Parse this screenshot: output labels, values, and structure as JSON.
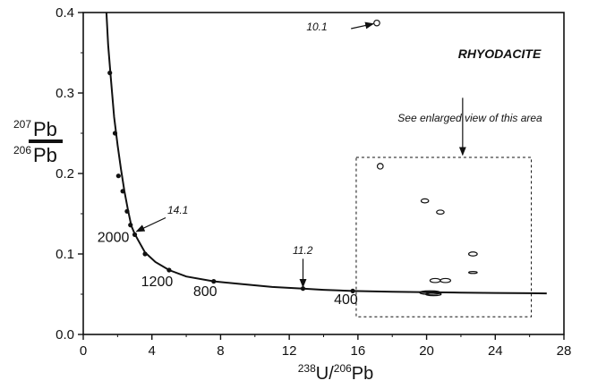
{
  "chart_data": {
    "type": "scatter",
    "title": "RHYODACITE",
    "xlabel": {
      "sup1": "238",
      "main1": "U/",
      "sup2": "206",
      "main2": "Pb"
    },
    "ylabel": {
      "num_sup": "207",
      "num": "Pb",
      "den_sup": "206",
      "den": "Pb"
    },
    "xlim": [
      0,
      28
    ],
    "ylim": [
      0.0,
      0.4
    ],
    "x_ticks": [
      0,
      4,
      8,
      12,
      16,
      20,
      24,
      28
    ],
    "x_tick_labels": [
      "0",
      "4",
      "8",
      "12",
      "16",
      "20",
      "24",
      "28"
    ],
    "y_ticks": [
      0.0,
      0.1,
      0.2,
      0.3,
      0.4
    ],
    "y_tick_labels": [
      "0.0",
      "0.1",
      "0.2",
      "0.3",
      "0.4"
    ],
    "grid": false,
    "concordia_curve": [
      [
        1.35,
        0.4
      ],
      [
        1.45,
        0.36
      ],
      [
        1.6,
        0.32
      ],
      [
        1.8,
        0.27
      ],
      [
        2.0,
        0.235
      ],
      [
        2.2,
        0.205
      ],
      [
        2.4,
        0.178
      ],
      [
        2.6,
        0.155
      ],
      [
        2.8,
        0.135
      ],
      [
        3.0,
        0.125
      ],
      [
        3.2,
        0.117
      ],
      [
        3.6,
        0.102
      ],
      [
        4.2,
        0.09
      ],
      [
        5.0,
        0.08
      ],
      [
        6.0,
        0.072
      ],
      [
        7.6,
        0.066
      ],
      [
        9.0,
        0.063
      ],
      [
        11.0,
        0.059
      ],
      [
        12.8,
        0.057
      ],
      [
        14.0,
        0.0555
      ],
      [
        15.7,
        0.054
      ],
      [
        18.0,
        0.053
      ],
      [
        20.0,
        0.0525
      ],
      [
        22.0,
        0.052
      ],
      [
        24.0,
        0.0515
      ],
      [
        26.0,
        0.0512
      ],
      [
        27.0,
        0.051
      ]
    ],
    "curve_markers": [
      [
        1.55,
        0.325
      ],
      [
        1.85,
        0.25
      ],
      [
        2.05,
        0.197
      ],
      [
        2.3,
        0.178
      ],
      [
        2.55,
        0.153
      ],
      [
        2.75,
        0.136
      ],
      [
        3.0,
        0.124
      ],
      [
        3.6,
        0.1
      ],
      [
        5.0,
        0.08
      ],
      [
        7.6,
        0.066
      ],
      [
        12.8,
        0.057
      ],
      [
        15.7,
        0.054
      ]
    ],
    "age_labels": [
      {
        "text": "2000",
        "x": 1.75,
        "y": 0.115
      },
      {
        "text": "1200",
        "x": 4.3,
        "y": 0.06
      },
      {
        "text": "800",
        "x": 7.1,
        "y": 0.048
      },
      {
        "text": "400",
        "x": 15.3,
        "y": 0.038
      }
    ],
    "ellipses": [
      {
        "x": 17.1,
        "y": 0.387,
        "rx": 0.17,
        "ry": 0.0035
      },
      {
        "x": 17.3,
        "y": 0.209,
        "rx": 0.17,
        "ry": 0.0035
      },
      {
        "x": 19.9,
        "y": 0.166,
        "rx": 0.22,
        "ry": 0.0025
      },
      {
        "x": 20.8,
        "y": 0.152,
        "rx": 0.22,
        "ry": 0.0025
      },
      {
        "x": 22.7,
        "y": 0.1,
        "rx": 0.25,
        "ry": 0.0025
      },
      {
        "x": 22.7,
        "y": 0.077,
        "rx": 0.25,
        "ry": 0.0012
      },
      {
        "x": 20.5,
        "y": 0.067,
        "rx": 0.3,
        "ry": 0.0025
      },
      {
        "x": 21.1,
        "y": 0.067,
        "rx": 0.3,
        "ry": 0.0025
      },
      {
        "x": 20.2,
        "y": 0.052,
        "rx": 0.6,
        "ry": 0.0022
      },
      {
        "x": 20.4,
        "y": 0.05,
        "rx": 0.45,
        "ry": 0.0018
      }
    ],
    "annotations": [
      {
        "text": "10.1",
        "label_x": 13.0,
        "label_y": 0.378,
        "arrow_from": [
          15.6,
          0.38
        ],
        "arrow_to": [
          16.9,
          0.386
        ]
      },
      {
        "text": "14.1",
        "label_x": 4.9,
        "label_y": 0.15,
        "arrow_from": [
          4.8,
          0.145
        ],
        "arrow_to": [
          3.1,
          0.128
        ]
      },
      {
        "text": "11.2",
        "label_x": 12.2,
        "label_y": 0.1,
        "arrow_from": [
          12.8,
          0.094
        ],
        "arrow_to": [
          12.8,
          0.059
        ]
      }
    ],
    "enlarged_box": {
      "label": "See enlarged view of this area",
      "x0": 15.9,
      "x1": 26.1,
      "y0": 0.022,
      "y1": 0.22,
      "arrow_x": 22.1,
      "arrow_from_y": 0.294,
      "arrow_to_y": 0.223
    }
  }
}
